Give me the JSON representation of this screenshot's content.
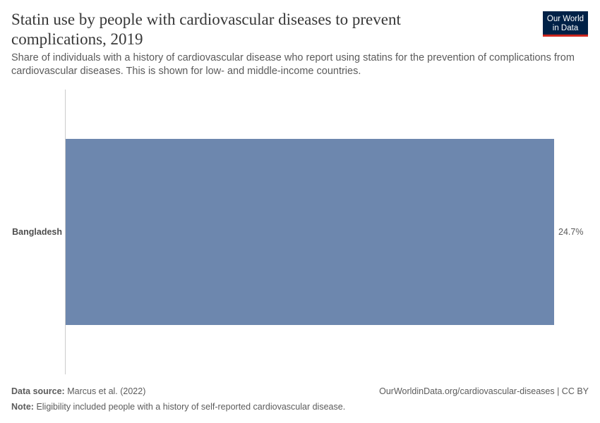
{
  "header": {
    "title": "Statin use by people with cardiovascular diseases to prevent complications, 2019",
    "subtitle": "Share of individuals with a history of cardiovascular disease who report using statins for the prevention of complications from cardiovascular diseases. This is shown for low- and middle-income countries.",
    "logo_line1": "Our World",
    "logo_line2": "in Data"
  },
  "chart_data": {
    "type": "bar",
    "orientation": "horizontal",
    "categories": [
      "Bangladesh"
    ],
    "values": [
      24.7
    ],
    "value_labels": [
      "24.7%"
    ],
    "unit": "%",
    "bar_color": "#6d87ae",
    "grid": false
  },
  "footer": {
    "source_label": "Data source:",
    "source": "Marcus et al. (2022)",
    "note_label": "Note:",
    "note": "Eligibility included people with a history of self-reported cardiovascular disease.",
    "license": "OurWorldinData.org/cardiovascular-diseases | CC BY"
  }
}
